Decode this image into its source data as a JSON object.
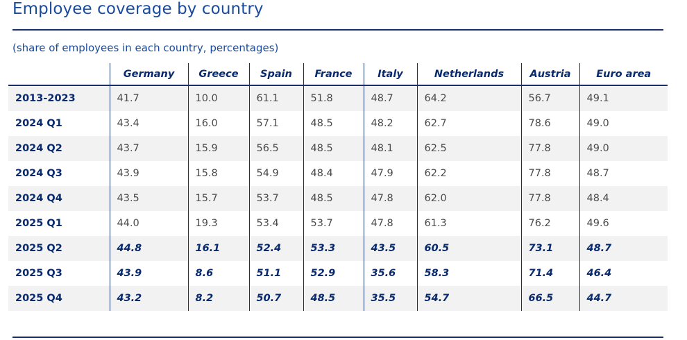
{
  "title": "Employee coverage by country",
  "subtitle": "(share of employees in each country, percentages)",
  "columns": [
    "Germany",
    "Greece",
    "Spain",
    "France",
    "Italy",
    "Netherlands",
    "Austria",
    "Euro area"
  ],
  "rows": [
    {
      "label": "2013-2023",
      "values": [
        "41.7",
        "10.0",
        "61.1",
        "51.8",
        "48.7",
        "64.2",
        "56.7",
        "49.1"
      ],
      "projection": false
    },
    {
      "label": "2024 Q1",
      "values": [
        "43.4",
        "16.0",
        "57.1",
        "48.5",
        "48.2",
        "62.7",
        "78.6",
        "49.0"
      ],
      "projection": false
    },
    {
      "label": "2024 Q2",
      "values": [
        "43.7",
        "15.9",
        "56.5",
        "48.5",
        "48.1",
        "62.5",
        "77.8",
        "49.0"
      ],
      "projection": false
    },
    {
      "label": "2024 Q3",
      "values": [
        "43.9",
        "15.8",
        "54.9",
        "48.4",
        "47.9",
        "62.2",
        "77.8",
        "48.7"
      ],
      "projection": false
    },
    {
      "label": "2024 Q4",
      "values": [
        "43.5",
        "15.7",
        "53.7",
        "48.5",
        "47.8",
        "62.0",
        "77.8",
        "48.4"
      ],
      "projection": false
    },
    {
      "label": "2025 Q1",
      "values": [
        "44.0",
        "19.3",
        "53.4",
        "53.7",
        "47.8",
        "61.3",
        "76.2",
        "49.6"
      ],
      "projection": false
    },
    {
      "label": "2025 Q2",
      "values": [
        "44.8",
        "16.1",
        "52.4",
        "53.3",
        "43.5",
        "60.5",
        "73.1",
        "48.7"
      ],
      "projection": true
    },
    {
      "label": "2025 Q3",
      "values": [
        "43.9",
        "8.6",
        "51.1",
        "52.9",
        "35.6",
        "58.3",
        "71.4",
        "46.4"
      ],
      "projection": true
    },
    {
      "label": "2025 Q4",
      "values": [
        "43.2",
        "8.2",
        "50.7",
        "48.5",
        "35.5",
        "54.7",
        "66.5",
        "44.7"
      ],
      "projection": true
    }
  ],
  "colors": {
    "accent": "#1a4b9c",
    "header_text": "#0a2a6e",
    "rule": "#1a2e6e",
    "row_shade": "#f2f2f2",
    "body_text": "#4a4a4a"
  }
}
